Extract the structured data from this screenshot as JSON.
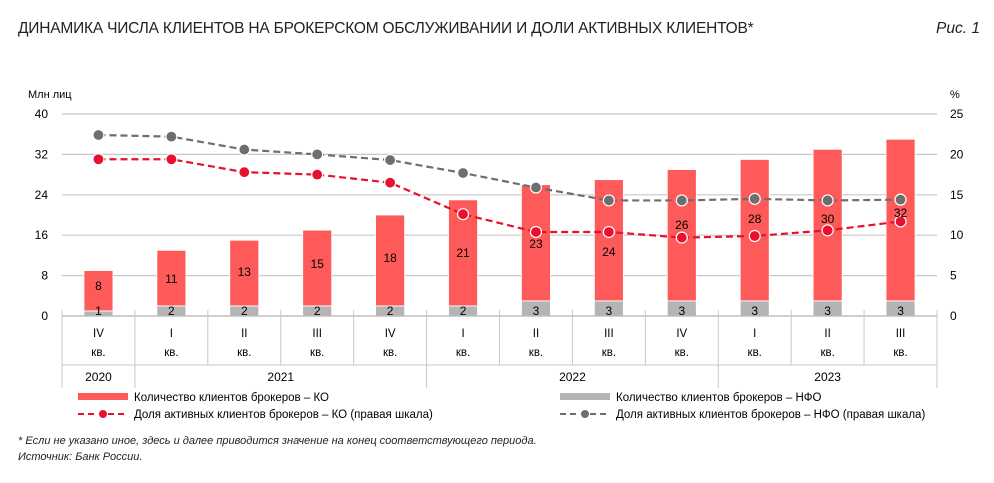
{
  "header": {
    "title": "ДИНАМИКА ЧИСЛА КЛИЕНТОВ НА БРОКЕРСКОМ ОБСЛУЖИВАНИИ И ДОЛИ АКТИВНЫХ КЛИЕНТОВ*",
    "figure": "Рис. 1"
  },
  "footnotes": {
    "note": "* Если не указано иное, здесь и далее приводится значение на конец соответствующего периода.",
    "source": "Источник: Банк России."
  },
  "chart_data": {
    "type": "bar+line",
    "ylabel_left": "Млн лиц",
    "ylabel_right": "%",
    "ylim_left": [
      0,
      40
    ],
    "yticks_left": [
      0,
      8,
      16,
      24,
      32,
      40
    ],
    "ylim_right": [
      0,
      25
    ],
    "yticks_right": [
      0,
      5,
      10,
      15,
      20,
      25
    ],
    "grid": true,
    "categories": [
      {
        "q": "IV",
        "sub": "кв."
      },
      {
        "q": "I",
        "sub": "кв."
      },
      {
        "q": "II",
        "sub": "кв."
      },
      {
        "q": "III",
        "sub": "кв."
      },
      {
        "q": "IV",
        "sub": "кв."
      },
      {
        "q": "I",
        "sub": "кв."
      },
      {
        "q": "II",
        "sub": "кв."
      },
      {
        "q": "III",
        "sub": "кв."
      },
      {
        "q": "IV",
        "sub": "кв."
      },
      {
        "q": "I",
        "sub": "кв."
      },
      {
        "q": "II",
        "sub": "кв."
      },
      {
        "q": "III",
        "sub": "кв."
      }
    ],
    "years": [
      {
        "label": "2020",
        "span": 1
      },
      {
        "label": "2021",
        "span": 4
      },
      {
        "label": "2022",
        "span": 4
      },
      {
        "label": "2023",
        "span": 3
      }
    ],
    "series": [
      {
        "name": "Количество клиентов брокеров – КО",
        "kind": "bar",
        "axis": "left",
        "color": "#ff5a5a",
        "values": [
          8,
          11,
          13,
          15,
          18,
          21,
          23,
          24,
          26,
          28,
          30,
          32
        ]
      },
      {
        "name": "Количество клиентов брокеров – НФО",
        "kind": "bar",
        "axis": "left",
        "color": "#b4b4b4",
        "values": [
          1,
          2,
          2,
          2,
          2,
          2,
          3,
          3,
          3,
          3,
          3,
          3
        ]
      },
      {
        "name": "Доля активных клиентов брокеров – КО (правая шкала)",
        "kind": "line",
        "axis": "right",
        "color": "#e8102e",
        "values": [
          19.4,
          19.4,
          17.8,
          17.5,
          16.5,
          12.6,
          10.4,
          10.4,
          9.7,
          9.9,
          10.6,
          11.7
        ]
      },
      {
        "name": "Доля активных клиентов брокеров – НФО (правая шкала)",
        "kind": "line",
        "axis": "right",
        "color": "#6e6e6e",
        "values": [
          22.4,
          22.2,
          20.6,
          20.0,
          19.3,
          17.7,
          15.9,
          14.3,
          14.3,
          14.5,
          14.3,
          14.4
        ]
      }
    ],
    "legend": "bottom"
  }
}
